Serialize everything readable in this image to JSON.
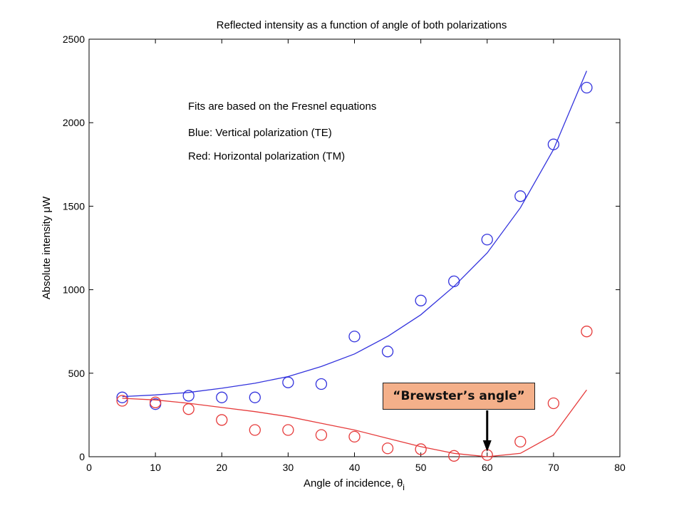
{
  "chart_data": {
    "type": "scatter",
    "title": "Reflected intensity as a function of angle of both polarizations",
    "xlabel": "Angle of incidence, θ",
    "xlabel_subscript": "i",
    "ylabel": "Absolute intensity μW",
    "xlim": [
      0,
      80
    ],
    "ylim": [
      0,
      2500
    ],
    "xticks": [
      0,
      10,
      20,
      30,
      40,
      50,
      60,
      70,
      80
    ],
    "yticks": [
      0,
      500,
      1000,
      1500,
      2000,
      2500
    ],
    "grid": false,
    "annotations": [
      "Fits are based on the Fresnel equations",
      "Blue: Vertical polarization (TE)",
      "Red: Horizontal polarization (TM)"
    ],
    "series": [
      {
        "color": "#3333dd",
        "marker": "open-circle",
        "x": [
          5,
          10,
          15,
          20,
          25,
          30,
          35,
          40,
          45,
          50,
          55,
          60,
          65,
          70,
          75
        ],
        "y": [
          355,
          315,
          365,
          355,
          355,
          445,
          435,
          720,
          630,
          935,
          1050,
          1300,
          1560,
          1870,
          2210
        ]
      },
      {
        "color": "#3333dd",
        "marker": "line",
        "x": [
          5,
          10,
          15,
          20,
          25,
          30,
          35,
          40,
          45,
          50,
          55,
          60,
          65,
          70,
          75
        ],
        "y": [
          360,
          370,
          385,
          410,
          440,
          480,
          540,
          615,
          720,
          850,
          1020,
          1220,
          1490,
          1840,
          2310
        ]
      },
      {
        "color": "#e63b3b",
        "marker": "open-circle",
        "x": [
          5,
          10,
          15,
          20,
          25,
          30,
          35,
          40,
          45,
          50,
          55,
          60,
          65,
          70,
          75
        ],
        "y": [
          335,
          325,
          285,
          220,
          160,
          160,
          130,
          120,
          50,
          45,
          5,
          10,
          90,
          320,
          750
        ]
      },
      {
        "color": "#e63b3b",
        "marker": "line",
        "x": [
          5,
          10,
          15,
          20,
          25,
          30,
          35,
          40,
          45,
          50,
          55,
          60,
          65,
          70,
          75
        ],
        "y": [
          350,
          340,
          320,
          295,
          270,
          240,
          200,
          160,
          110,
          60,
          20,
          0,
          20,
          130,
          400
        ]
      }
    ],
    "callout": {
      "text": "“Brewster’s angle”",
      "points_to_x": 60,
      "background": "#f4b08a"
    }
  }
}
